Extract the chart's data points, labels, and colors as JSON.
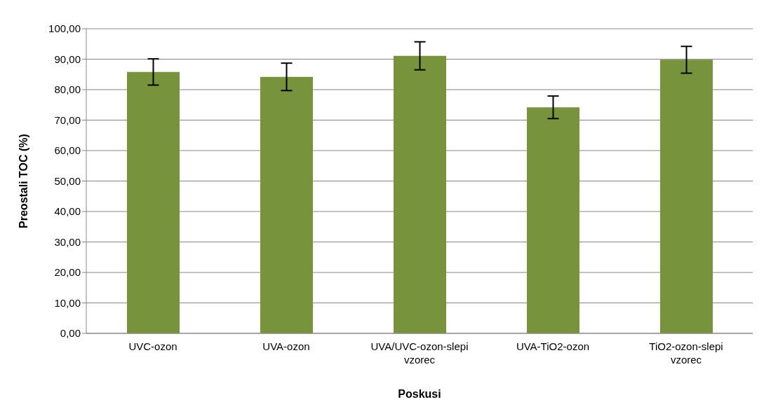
{
  "chart_data": {
    "type": "bar",
    "xlabel": "Poskusi",
    "ylabel": "Preostali TOC (%)",
    "categories": [
      "UVC-ozon",
      "UVA-ozon",
      "UVA/UVC-ozon-slepi vzorec",
      "UVA-TiO2-ozon",
      "TiO2-ozon-slepi vzorec"
    ],
    "values": [
      85.8,
      84.2,
      91.1,
      74.2,
      89.8
    ],
    "errors": [
      4.3,
      4.5,
      4.6,
      3.7,
      4.4
    ],
    "color": "#77933c",
    "ylim": [
      0,
      100
    ],
    "yticks": [
      {
        "value": 0,
        "label": "0,00"
      },
      {
        "value": 10,
        "label": "10,00"
      },
      {
        "value": 20,
        "label": "20,00"
      },
      {
        "value": 30,
        "label": "30,00"
      },
      {
        "value": 40,
        "label": "40,00"
      },
      {
        "value": 50,
        "label": "50,00"
      },
      {
        "value": 60,
        "label": "60,00"
      },
      {
        "value": 70,
        "label": "70,00"
      },
      {
        "value": 80,
        "label": "80,00"
      },
      {
        "value": 90,
        "label": "90,00"
      },
      {
        "value": 100,
        "label": "100,00"
      }
    ],
    "grid": "y",
    "legend": false
  }
}
